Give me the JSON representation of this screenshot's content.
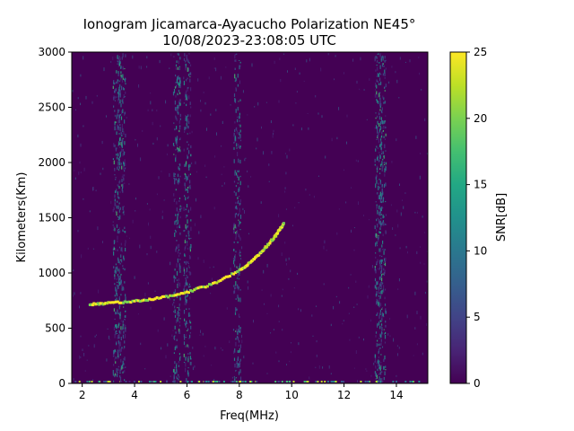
{
  "chart_data": {
    "type": "heatmap",
    "title_line1": "Ionogram Jicamarca-Ayacucho Polarization NE45°",
    "title_line2": "10/08/2023-23:08:05 UTC",
    "xlabel": "Freq(MHz)",
    "ylabel": "Kilometers(Km)",
    "xlim": [
      1.6,
      15.2
    ],
    "ylim": [
      0,
      3000
    ],
    "xticks": [
      2,
      4,
      6,
      8,
      10,
      12,
      14
    ],
    "yticks": [
      0,
      500,
      1000,
      1500,
      2000,
      2500,
      3000
    ],
    "colorbar": {
      "label": "SNR[dB]",
      "range": [
        0,
        25
      ],
      "ticks": [
        0,
        5,
        10,
        15,
        20,
        25
      ],
      "colormap": "viridis"
    },
    "background_color": "#440154",
    "interference_bands_mhz": [
      3.3,
      3.5,
      5.6,
      6.0,
      7.9,
      13.3,
      13.45
    ],
    "echo_trace": [
      {
        "f": 2.3,
        "h": 715
      },
      {
        "f": 3.0,
        "h": 725
      },
      {
        "f": 4.0,
        "h": 745
      },
      {
        "f": 5.0,
        "h": 775
      },
      {
        "f": 6.0,
        "h": 825
      },
      {
        "f": 7.0,
        "h": 900
      },
      {
        "f": 8.0,
        "h": 1020
      },
      {
        "f": 8.5,
        "h": 1110
      },
      {
        "f": 9.0,
        "h": 1230
      },
      {
        "f": 9.4,
        "h": 1340
      },
      {
        "f": 9.7,
        "h": 1450
      }
    ]
  }
}
